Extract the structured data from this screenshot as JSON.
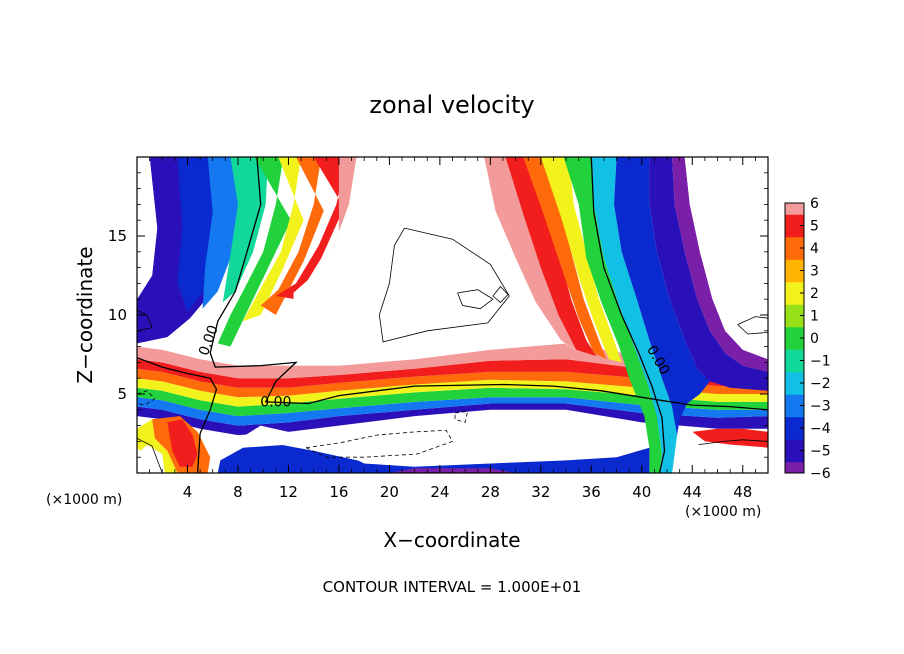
{
  "chart_data": {
    "type": "heatmap",
    "title": "zonal velocity",
    "xlabel": "X−coordinate",
    "ylabel": "Z−coordinate",
    "x_unit": "(×1000 m)",
    "y_unit": "(×1000 m)",
    "footer": "CONTOUR INTERVAL = 1.000E+01",
    "xlim": [
      0,
      50
    ],
    "ylim": [
      0,
      20
    ],
    "x_ticks": [
      {
        "v": 4,
        "label": "4"
      },
      {
        "v": 8,
        "label": "8"
      },
      {
        "v": 12,
        "label": "12"
      },
      {
        "v": 16,
        "label": "16"
      },
      {
        "v": 20,
        "label": "20"
      },
      {
        "v": 24,
        "label": "24"
      },
      {
        "v": 28,
        "label": "28"
      },
      {
        "v": 32,
        "label": "32"
      },
      {
        "v": 36,
        "label": "36"
      },
      {
        "v": 40,
        "label": "40"
      },
      {
        "v": 44,
        "label": "44"
      },
      {
        "v": 48,
        "label": "48"
      }
    ],
    "y_ticks": [
      {
        "v": 5,
        "label": "5"
      },
      {
        "v": 10,
        "label": "10"
      },
      {
        "v": 15,
        "label": "15"
      }
    ],
    "colorbar": {
      "range": [
        -6,
        6
      ],
      "labels": [
        {
          "v": 6,
          "label": "6"
        },
        {
          "v": 5,
          "label": "5"
        },
        {
          "v": 4,
          "label": "4"
        },
        {
          "v": 3,
          "label": "3"
        },
        {
          "v": 2,
          "label": "2"
        },
        {
          "v": 1,
          "label": "1"
        },
        {
          "v": 0,
          "label": "0"
        },
        {
          "v": -1,
          "label": "−1"
        },
        {
          "v": -2,
          "label": "−2"
        },
        {
          "v": -3,
          "label": "−3"
        },
        {
          "v": -4,
          "label": "−4"
        },
        {
          "v": -5,
          "label": "−5"
        },
        {
          "v": -6,
          "label": "−6"
        }
      ],
      "stops": [
        {
          "v": -6,
          "color": "#7a1fa8"
        },
        {
          "v": -5,
          "color": "#2a10b8"
        },
        {
          "v": -4,
          "color": "#0a2ad0"
        },
        {
          "v": -3,
          "color": "#1478f0"
        },
        {
          "v": -2,
          "color": "#12c0e6"
        },
        {
          "v": -1,
          "color": "#12d89a"
        },
        {
          "v": 0,
          "color": "#22d23c"
        },
        {
          "v": 1,
          "color": "#98e018"
        },
        {
          "v": 2,
          "color": "#f2f21c"
        },
        {
          "v": 3,
          "color": "#ffb400"
        },
        {
          "v": 4,
          "color": "#ff6a0a"
        },
        {
          "v": 5,
          "color": "#f21e1e"
        },
        {
          "v": 6,
          "color": "#f39a9a"
        }
      ]
    },
    "contour_labels": [
      {
        "text": "0.00",
        "x": 6.0,
        "y": 8.3
      },
      {
        "text": "0.00",
        "x": 11.0,
        "y": 4.2
      },
      {
        "text": "0.00",
        "x": 41.0,
        "y": 7.0
      }
    ],
    "zero_contour_lines": [
      [
        [
          9.5,
          20
        ],
        [
          9.8,
          17
        ],
        [
          8.9,
          14.5
        ],
        [
          7.8,
          11.5
        ],
        [
          6.4,
          9.6
        ],
        [
          5.8,
          7.6
        ],
        [
          6.2,
          6.7
        ],
        [
          9.8,
          6.8
        ],
        [
          12.6,
          7.0
        ],
        [
          11.0,
          5.8
        ],
        [
          10.2,
          4.5
        ],
        [
          13.6,
          4.4
        ],
        [
          16.0,
          4.9
        ],
        [
          22.0,
          5.5
        ],
        [
          29.0,
          5.6
        ],
        [
          33.0,
          5.5
        ],
        [
          36.8,
          5.2
        ],
        [
          41.5,
          4.6
        ],
        [
          44.0,
          4.3
        ],
        [
          47.0,
          4.2
        ],
        [
          50,
          4.0
        ]
      ],
      [
        [
          36.0,
          20
        ],
        [
          36.2,
          16.5
        ],
        [
          37.0,
          13.0
        ],
        [
          38.4,
          10.0
        ],
        [
          39.8,
          7.5
        ],
        [
          40.8,
          5.5
        ],
        [
          41.6,
          3.5
        ],
        [
          41.8,
          1.4
        ],
        [
          41.4,
          0
        ]
      ],
      [
        [
          0,
          7.3
        ],
        [
          2.0,
          6.7
        ],
        [
          4.0,
          6.3
        ],
        [
          5.8,
          6.0
        ],
        [
          6.3,
          5.3
        ],
        [
          5.8,
          4.0
        ],
        [
          5.0,
          2.5
        ],
        [
          4.8,
          0
        ]
      ]
    ]
  }
}
